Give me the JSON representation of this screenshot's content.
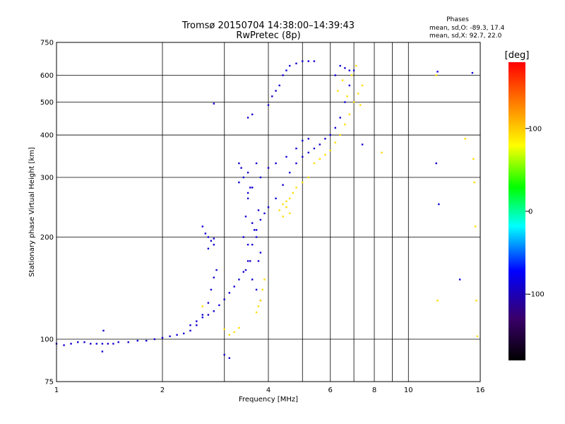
{
  "chart_data": {
    "type": "scatter",
    "title": "Tromsø 20150704 14:38:00–14:39:43",
    "subtitle": "RwPretec (8p)",
    "xlabel": "Frequency [MHz]",
    "ylabel": "Stationary phase Virtual Height [km]",
    "x_scale": "log",
    "y_scale": "log",
    "xlim": [
      1,
      16
    ],
    "ylim": [
      75,
      750
    ],
    "x_ticks": [
      1,
      2,
      4,
      6,
      8,
      10,
      16
    ],
    "x_tick_labels": [
      "1",
      "2",
      "4",
      "6",
      "8",
      "10",
      "16"
    ],
    "y_ticks": [
      75,
      100,
      200,
      300,
      400,
      500,
      600,
      750
    ],
    "y_tick_labels": [
      "75",
      "100",
      "200",
      "300",
      "400",
      "500",
      "600",
      "750"
    ],
    "grid": true,
    "phases": {
      "heading": "Phases",
      "line_o": "mean, sd,O: -89.3, 17.4",
      "line_x": "mean, sd,X:  92.7, 22.0"
    },
    "colorbar": {
      "label": "[deg]",
      "min": -180,
      "max": 180,
      "ticks": [
        100,
        0,
        -100
      ],
      "tick_labels": [
        "100",
        "0",
        "-100"
      ],
      "colors": [
        "#000000",
        "#3a006a",
        "#0000ff",
        "#00ffff",
        "#00ff00",
        "#ffff00",
        "#ff8000",
        "#ff0000"
      ]
    },
    "series": [
      {
        "name": "O",
        "phase_mean": -89.3,
        "points": [
          [
            1.0,
            97
          ],
          [
            1.05,
            96
          ],
          [
            1.1,
            97
          ],
          [
            1.15,
            98
          ],
          [
            1.2,
            98
          ],
          [
            1.25,
            97
          ],
          [
            1.3,
            97
          ],
          [
            1.35,
            97
          ],
          [
            1.4,
            97
          ],
          [
            1.45,
            97
          ],
          [
            1.5,
            98
          ],
          [
            1.6,
            98
          ],
          [
            1.7,
            99
          ],
          [
            1.8,
            99
          ],
          [
            1.9,
            100
          ],
          [
            2.0,
            101
          ],
          [
            2.1,
            102
          ],
          [
            2.2,
            103
          ],
          [
            2.3,
            104
          ],
          [
            2.4,
            106
          ],
          [
            2.5,
            110
          ],
          [
            2.6,
            118
          ],
          [
            2.7,
            128
          ],
          [
            2.75,
            140
          ],
          [
            2.8,
            152
          ],
          [
            2.85,
            160
          ],
          [
            2.4,
            110
          ],
          [
            2.5,
            113
          ],
          [
            2.6,
            116
          ],
          [
            2.7,
            118
          ],
          [
            2.8,
            121
          ],
          [
            2.9,
            126
          ],
          [
            3.0,
            131
          ],
          [
            3.1,
            137
          ],
          [
            3.2,
            143
          ],
          [
            3.3,
            150
          ],
          [
            3.4,
            158
          ],
          [
            3.5,
            170
          ],
          [
            3.6,
            190
          ],
          [
            3.7,
            210
          ],
          [
            3.8,
            225
          ],
          [
            3.9,
            235
          ],
          [
            4.0,
            245
          ],
          [
            4.2,
            260
          ],
          [
            4.4,
            285
          ],
          [
            4.6,
            310
          ],
          [
            4.8,
            330
          ],
          [
            5.0,
            345
          ],
          [
            5.2,
            355
          ],
          [
            5.4,
            365
          ],
          [
            5.6,
            375
          ],
          [
            5.8,
            390
          ],
          [
            6.0,
            400
          ],
          [
            6.2,
            420
          ],
          [
            6.4,
            450
          ],
          [
            6.6,
            500
          ],
          [
            6.8,
            560
          ],
          [
            7.0,
            620
          ],
          [
            3.3,
            290
          ],
          [
            3.35,
            320
          ],
          [
            3.3,
            330
          ],
          [
            3.4,
            300
          ],
          [
            3.5,
            310
          ],
          [
            3.5,
            270
          ],
          [
            3.6,
            280
          ],
          [
            3.7,
            330
          ],
          [
            3.8,
            300
          ],
          [
            4.0,
            320
          ],
          [
            4.2,
            330
          ],
          [
            4.5,
            345
          ],
          [
            4.8,
            365
          ],
          [
            5.0,
            385
          ],
          [
            5.2,
            390
          ],
          [
            3.5,
            450
          ],
          [
            3.6,
            460
          ],
          [
            4.0,
            490
          ],
          [
            4.1,
            520
          ],
          [
            4.2,
            540
          ],
          [
            4.3,
            560
          ],
          [
            4.4,
            600
          ],
          [
            4.5,
            620
          ],
          [
            4.6,
            640
          ],
          [
            4.8,
            650
          ],
          [
            5.0,
            660
          ],
          [
            5.2,
            660
          ],
          [
            5.4,
            660
          ],
          [
            3.5,
            190
          ],
          [
            3.45,
            230
          ],
          [
            3.5,
            260
          ],
          [
            3.55,
            170
          ],
          [
            3.6,
            150
          ],
          [
            3.65,
            210
          ],
          [
            3.7,
            140
          ],
          [
            3.75,
            240
          ],
          [
            3.8,
            180
          ],
          [
            3.4,
            200
          ],
          [
            3.45,
            160
          ],
          [
            3.55,
            280
          ],
          [
            3.6,
            220
          ],
          [
            3.7,
            200
          ],
          [
            3.75,
            170
          ],
          [
            3.8,
            130
          ],
          [
            2.7,
            200
          ],
          [
            2.75,
            195
          ],
          [
            2.8,
            190
          ],
          [
            2.65,
            205
          ],
          [
            2.6,
            215
          ],
          [
            2.7,
            185
          ],
          [
            2.8,
            198
          ],
          [
            6.2,
            600
          ],
          [
            6.4,
            640
          ],
          [
            6.6,
            630
          ],
          [
            6.8,
            620
          ],
          [
            1.35,
            92
          ],
          [
            1.36,
            106
          ],
          [
            2.8,
            495
          ],
          [
            12.0,
            330
          ],
          [
            12.2,
            250
          ],
          [
            14.0,
            150
          ],
          [
            12.1,
            615
          ],
          [
            15.2,
            610
          ],
          [
            3.0,
            90
          ],
          [
            3.1,
            88
          ],
          [
            7.4,
            375
          ]
        ]
      },
      {
        "name": "X",
        "phase_mean": 92.7,
        "points": [
          [
            3.2,
            105
          ],
          [
            3.3,
            108
          ],
          [
            3.1,
            103
          ],
          [
            3.8,
            130
          ],
          [
            3.85,
            140
          ],
          [
            3.9,
            150
          ],
          [
            3.7,
            120
          ],
          [
            3.75,
            125
          ],
          [
            4.3,
            240
          ],
          [
            4.4,
            250
          ],
          [
            4.5,
            255
          ],
          [
            4.6,
            260
          ],
          [
            4.7,
            270
          ],
          [
            4.8,
            280
          ],
          [
            5.0,
            290
          ],
          [
            5.2,
            300
          ],
          [
            4.4,
            230
          ],
          [
            4.5,
            245
          ],
          [
            4.6,
            235
          ],
          [
            5.4,
            330
          ],
          [
            5.6,
            340
          ],
          [
            5.8,
            350
          ],
          [
            6.0,
            360
          ],
          [
            6.2,
            380
          ],
          [
            6.4,
            400
          ],
          [
            6.6,
            430
          ],
          [
            6.8,
            460
          ],
          [
            7.0,
            500
          ],
          [
            7.2,
            530
          ],
          [
            7.4,
            560
          ],
          [
            6.3,
            540
          ],
          [
            6.5,
            580
          ],
          [
            6.7,
            520
          ],
          [
            6.9,
            600
          ],
          [
            7.1,
            640
          ],
          [
            7.3,
            490
          ],
          [
            8.4,
            355
          ],
          [
            12.0,
            600
          ],
          [
            12.1,
            130
          ],
          [
            14.5,
            390
          ],
          [
            15.3,
            340
          ],
          [
            15.4,
            290
          ],
          [
            15.5,
            215
          ],
          [
            15.6,
            130
          ],
          [
            15.7,
            102
          ],
          [
            2.6,
            125
          ],
          [
            3.0,
            107
          ]
        ]
      }
    ]
  }
}
